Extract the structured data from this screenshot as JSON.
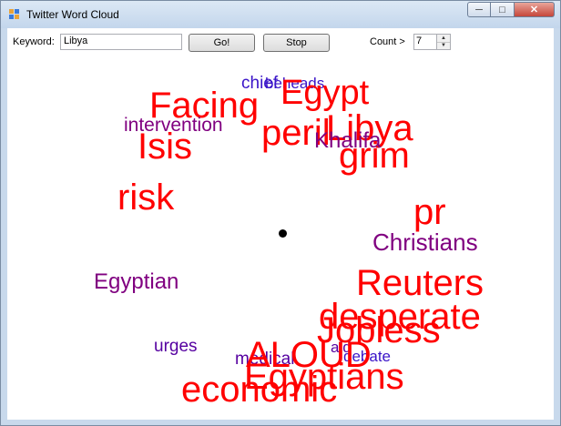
{
  "window": {
    "title": "Twitter Word Cloud",
    "minimize_glyph": "─",
    "maximize_glyph": "□",
    "close_glyph": "✕"
  },
  "toolbar": {
    "keyword_label": "Keyword:",
    "keyword_value": "Libya",
    "go_label": "Go!",
    "stop_label": "Stop",
    "count_label": "Count >",
    "count_value": "7",
    "spin_up_glyph": "▲",
    "spin_down_glyph": "▼"
  },
  "colors": {
    "red": "#ff0000",
    "purple": "#800080",
    "indigo": "#5500a0",
    "blue_violet": "#3a14c8"
  },
  "words": [
    {
      "text": "chief",
      "color": "blue_violet",
      "size": 19
    },
    {
      "text": "beheads",
      "color": "blue_violet",
      "size": 17
    },
    {
      "text": "Egypt",
      "color": "red",
      "size": 38
    },
    {
      "text": "Facing",
      "color": "red",
      "size": 40
    },
    {
      "text": "intervention",
      "color": "purple",
      "size": 21
    },
    {
      "text": "peril",
      "color": "red",
      "size": 40
    },
    {
      "text": "Libya",
      "color": "red",
      "size": 40
    },
    {
      "text": "Khalifa",
      "color": "purple",
      "size": 24
    },
    {
      "text": "Isis",
      "color": "red",
      "size": 40
    },
    {
      "text": "grim",
      "color": "red",
      "size": 40
    },
    {
      "text": "risk",
      "color": "red",
      "size": 40
    },
    {
      "text": "pr",
      "color": "red",
      "size": 40
    },
    {
      "text": "Christians",
      "color": "purple",
      "size": 26
    },
    {
      "text": "Egyptian",
      "color": "purple",
      "size": 24
    },
    {
      "text": "Reuters",
      "color": "red",
      "size": 40
    },
    {
      "text": "desperate",
      "color": "red",
      "size": 40
    },
    {
      "text": "Jobless",
      "color": "red",
      "size": 40
    },
    {
      "text": "urges",
      "color": "indigo",
      "size": 19
    },
    {
      "text": "aid",
      "color": "indigo",
      "size": 17
    },
    {
      "text": "debate",
      "color": "blue_violet",
      "size": 17
    },
    {
      "text": "medical",
      "color": "indigo",
      "size": 19
    },
    {
      "text": "ALOUD",
      "color": "red",
      "size": 40
    },
    {
      "text": "Egyptians",
      "color": "red",
      "size": 40
    },
    {
      "text": "economic",
      "color": "red",
      "size": 40
    }
  ]
}
